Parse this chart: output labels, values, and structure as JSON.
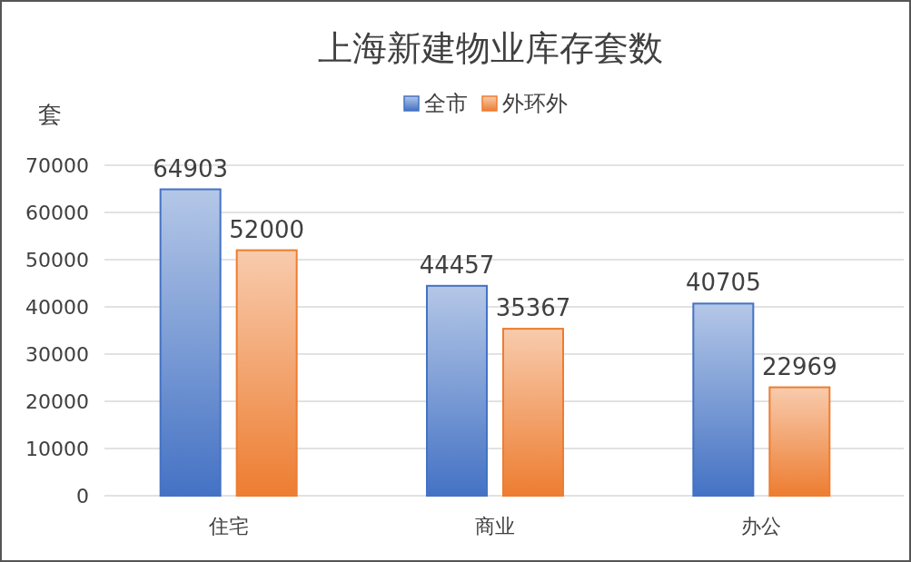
{
  "chart_data": {
    "type": "bar",
    "title": "上海新建物业库存套数",
    "ylabel": "套",
    "categories": [
      "住宅",
      "商业",
      "办公"
    ],
    "series": [
      {
        "name": "全市",
        "color": "#4472c4",
        "values": [
          64903,
          44457,
          40705
        ]
      },
      {
        "name": "外环外",
        "color": "#ed7d31",
        "values": [
          52000,
          35367,
          22969
        ]
      }
    ],
    "ylim": [
      0,
      70000
    ],
    "yticks": [
      0,
      10000,
      20000,
      30000,
      40000,
      50000,
      60000,
      70000
    ],
    "grid": "y",
    "legend": "top",
    "data_labels": true
  }
}
